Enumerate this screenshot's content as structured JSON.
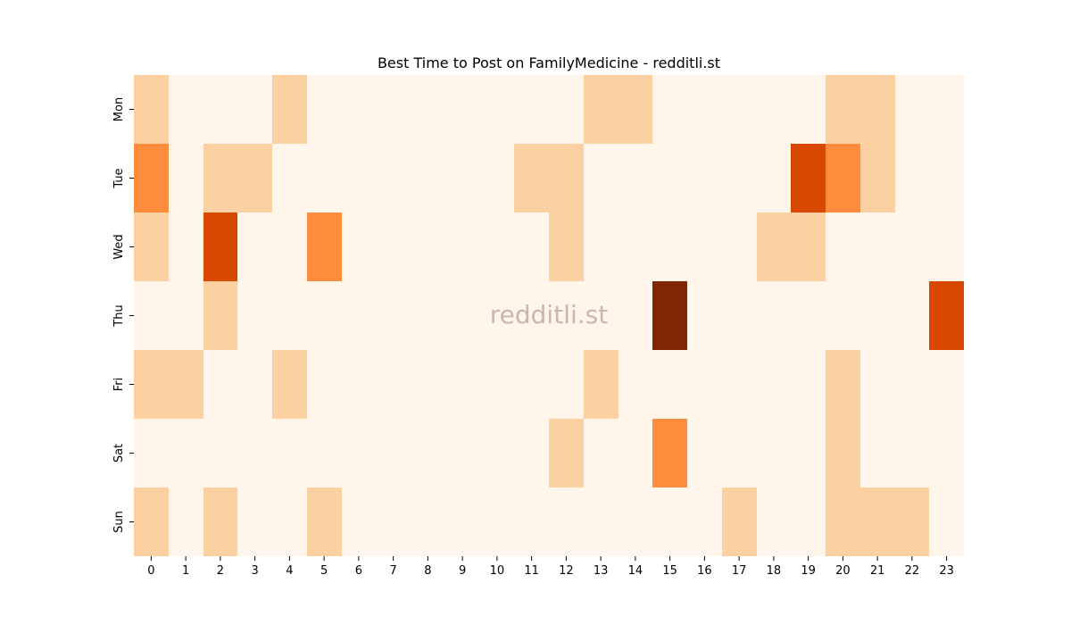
{
  "chart_data": {
    "type": "heatmap",
    "title": "Best Time to Post on FamilyMedicine - redditli.st",
    "watermark": "redditli.st",
    "x": [
      "0",
      "1",
      "2",
      "3",
      "4",
      "5",
      "6",
      "7",
      "8",
      "9",
      "10",
      "11",
      "12",
      "13",
      "14",
      "15",
      "16",
      "17",
      "18",
      "19",
      "20",
      "21",
      "22",
      "23"
    ],
    "y": [
      "Mon",
      "Tue",
      "Wed",
      "Thu",
      "Fri",
      "Sat",
      "Sun"
    ],
    "values": [
      [
        1,
        0,
        0,
        0,
        1,
        0,
        0,
        0,
        0,
        0,
        0,
        0,
        0,
        1,
        1,
        0,
        0,
        0,
        0,
        0,
        1,
        1,
        0,
        0
      ],
      [
        2,
        0,
        1,
        1,
        0,
        0,
        0,
        0,
        0,
        0,
        0,
        1,
        1,
        0,
        0,
        0,
        0,
        0,
        0,
        3,
        2,
        1,
        0,
        0
      ],
      [
        1,
        0,
        3,
        0,
        0,
        2,
        0,
        0,
        0,
        0,
        0,
        0,
        1,
        0,
        0,
        0,
        0,
        0,
        1,
        1,
        0,
        0,
        0,
        0
      ],
      [
        0,
        0,
        1,
        0,
        0,
        0,
        0,
        0,
        0,
        0,
        0,
        0,
        0,
        0,
        0,
        4,
        0,
        0,
        0,
        0,
        0,
        0,
        0,
        3
      ],
      [
        1,
        1,
        0,
        0,
        1,
        0,
        0,
        0,
        0,
        0,
        0,
        0,
        0,
        1,
        0,
        0,
        0,
        0,
        0,
        0,
        1,
        0,
        0,
        0
      ],
      [
        0,
        0,
        0,
        0,
        0,
        0,
        0,
        0,
        0,
        0,
        0,
        0,
        1,
        0,
        0,
        2,
        0,
        0,
        0,
        0,
        1,
        0,
        0,
        0
      ],
      [
        1,
        0,
        1,
        0,
        0,
        1,
        0,
        0,
        0,
        0,
        0,
        0,
        0,
        0,
        0,
        0,
        0,
        1,
        0,
        0,
        1,
        1,
        1,
        0
      ]
    ],
    "value_range": [
      0,
      4
    ],
    "colormap": [
      "#fff5eb",
      "#fdd0a2",
      "#fd8d3c",
      "#d94801",
      "#7f2704"
    ],
    "grid": false,
    "legend": "none"
  }
}
